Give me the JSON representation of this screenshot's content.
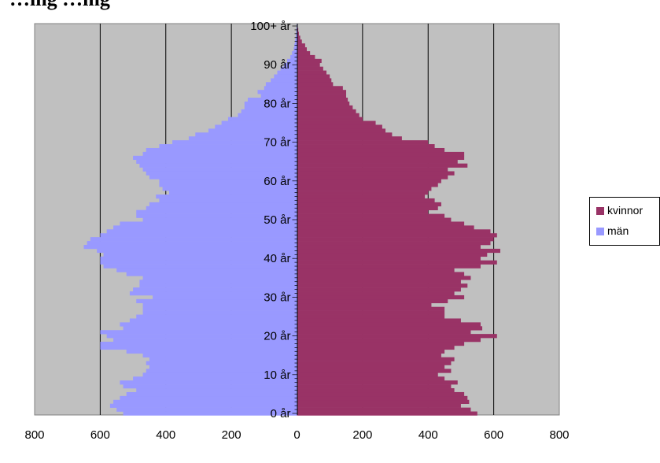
{
  "title": "…ing        …ing",
  "chart_data": {
    "type": "bar",
    "orientation": "horizontal",
    "layout": "population-pyramid",
    "grid": true,
    "legend_position": "right",
    "xlim": [
      -800,
      800
    ],
    "x_ticks": [
      "800",
      "600",
      "400",
      "200",
      "0",
      "200",
      "400",
      "600",
      "800"
    ],
    "age_labels": [
      "0 år",
      "10 år",
      "20 år",
      "30 år",
      "40 år",
      "50 år",
      "60 år",
      "70 år",
      "80 år",
      "90 år",
      "100+ år"
    ],
    "categories_note": "ages 0 to 100+ in one-year steps",
    "series": [
      {
        "name": "kvinnor",
        "color": "#993366",
        "values": [
          550,
          530,
          500,
          525,
          520,
          510,
          480,
          470,
          490,
          450,
          430,
          470,
          450,
          470,
          480,
          440,
          450,
          480,
          510,
          560,
          610,
          530,
          565,
          560,
          500,
          450,
          450,
          450,
          410,
          460,
          510,
          480,
          500,
          520,
          500,
          530,
          510,
          480,
          560,
          610,
          560,
          580,
          620,
          560,
          590,
          600,
          610,
          590,
          540,
          510,
          470,
          450,
          400,
          430,
          440,
          420,
          390,
          400,
          410,
          430,
          440,
          460,
          480,
          460,
          520,
          490,
          510,
          510,
          450,
          420,
          400,
          320,
          290,
          270,
          260,
          240,
          200,
          190,
          180,
          170,
          160,
          155,
          150,
          150,
          140,
          110,
          105,
          100,
          90,
          80,
          70,
          75,
          55,
          40,
          30,
          25,
          15,
          10,
          6,
          4,
          2
        ]
      },
      {
        "name": "män",
        "color": "#9999ff",
        "values": [
          530,
          550,
          570,
          560,
          540,
          520,
          490,
          530,
          540,
          500,
          470,
          460,
          450,
          460,
          450,
          470,
          520,
          600,
          600,
          560,
          580,
          600,
          530,
          540,
          510,
          490,
          470,
          470,
          470,
          490,
          440,
          510,
          500,
          480,
          480,
          470,
          520,
          550,
          590,
          600,
          600,
          590,
          610,
          650,
          640,
          630,
          600,
          580,
          560,
          540,
          470,
          490,
          490,
          460,
          450,
          420,
          430,
          390,
          410,
          420,
          420,
          450,
          460,
          470,
          480,
          490,
          500,
          470,
          460,
          420,
          380,
          330,
          310,
          270,
          250,
          230,
          210,
          180,
          170,
          160,
          160,
          150,
          110,
          120,
          100,
          95,
          80,
          70,
          60,
          50,
          40,
          30,
          20,
          15,
          10,
          8,
          6,
          4,
          3,
          2,
          1
        ]
      }
    ]
  }
}
